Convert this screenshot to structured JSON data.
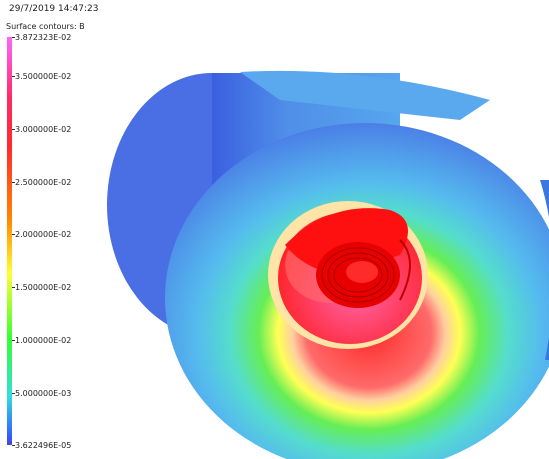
{
  "header": {
    "timestamp": "29/7/2019 14:47:23"
  },
  "legend": {
    "title": "Surface contours: B",
    "ticks": [
      {
        "label": "3.872323E-02",
        "value": 0.03872323
      },
      {
        "label": "3.500000E-02",
        "value": 0.035
      },
      {
        "label": "3.000000E-02",
        "value": 0.03
      },
      {
        "label": "2.500000E-02",
        "value": 0.025
      },
      {
        "label": "2.000000E-02",
        "value": 0.02
      },
      {
        "label": "1.500000E-02",
        "value": 0.015
      },
      {
        "label": "1.000000E-02",
        "value": 0.01
      },
      {
        "label": "5.000000E-03",
        "value": 0.005
      },
      {
        "label": "3.622496E-05",
        "value": 3.622496e-05
      }
    ],
    "min": 3.622496e-05,
    "max": 0.03872323
  },
  "colors": {
    "outer_cylinder": "#4f8fe8",
    "hot_core": "#ff1a1a",
    "warm_ring": "#ffff44",
    "mid_ring": "#33dd66"
  }
}
